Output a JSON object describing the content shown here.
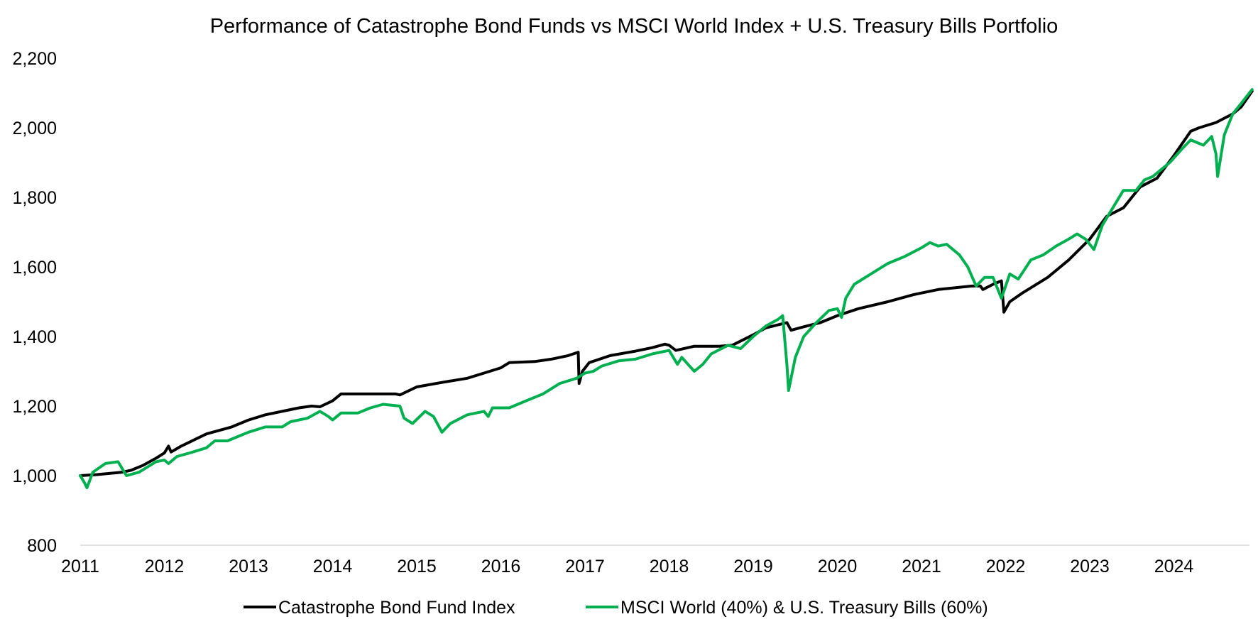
{
  "chart_data": {
    "type": "line",
    "title": "Performance of Catastrophe Bond Funds vs MSCI World Index + U.S. Treasury Bills Portfolio",
    "xlabel": "",
    "ylabel": "",
    "xlim": [
      2011,
      2024.93
    ],
    "ylim": [
      800,
      2200
    ],
    "x_ticks": [
      "2011",
      "2012",
      "2013",
      "2014",
      "2015",
      "2016",
      "2017",
      "2018",
      "2019",
      "2020",
      "2021",
      "2022",
      "2023",
      "2024"
    ],
    "y_ticks": [
      "800",
      "1,000",
      "1,200",
      "1,400",
      "1,600",
      "1,800",
      "2,000",
      "2,200"
    ],
    "grid": false,
    "legend_position": "bottom",
    "series": [
      {
        "name": "Catastrophe Bond Fund Index",
        "color": "#000000",
        "points": [
          [
            2011.0,
            1000
          ],
          [
            2011.2,
            1003
          ],
          [
            2011.5,
            1010
          ],
          [
            2011.6,
            1015
          ],
          [
            2011.75,
            1030
          ],
          [
            2011.9,
            1050
          ],
          [
            2012.0,
            1065
          ],
          [
            2012.05,
            1085
          ],
          [
            2012.08,
            1068
          ],
          [
            2012.2,
            1085
          ],
          [
            2012.5,
            1120
          ],
          [
            2012.8,
            1140
          ],
          [
            2013.0,
            1160
          ],
          [
            2013.2,
            1175
          ],
          [
            2013.6,
            1195
          ],
          [
            2013.75,
            1200
          ],
          [
            2013.85,
            1198
          ],
          [
            2014.0,
            1215
          ],
          [
            2014.1,
            1235
          ],
          [
            2014.3,
            1235
          ],
          [
            2014.75,
            1235
          ],
          [
            2014.8,
            1232
          ],
          [
            2015.0,
            1255
          ],
          [
            2015.3,
            1268
          ],
          [
            2015.6,
            1280
          ],
          [
            2015.8,
            1295
          ],
          [
            2016.0,
            1310
          ],
          [
            2016.1,
            1325
          ],
          [
            2016.4,
            1328
          ],
          [
            2016.6,
            1335
          ],
          [
            2016.8,
            1345
          ],
          [
            2016.92,
            1355
          ],
          [
            2016.93,
            1265
          ],
          [
            2016.97,
            1300
          ],
          [
            2017.05,
            1325
          ],
          [
            2017.3,
            1345
          ],
          [
            2017.6,
            1358
          ],
          [
            2017.8,
            1368
          ],
          [
            2017.95,
            1378
          ],
          [
            2018.0,
            1375
          ],
          [
            2018.08,
            1360
          ],
          [
            2018.3,
            1372
          ],
          [
            2018.6,
            1372
          ],
          [
            2018.75,
            1375
          ],
          [
            2019.0,
            1405
          ],
          [
            2019.15,
            1425
          ],
          [
            2019.4,
            1440
          ],
          [
            2019.45,
            1418
          ],
          [
            2019.6,
            1428
          ],
          [
            2019.8,
            1440
          ],
          [
            2020.0,
            1460
          ],
          [
            2020.25,
            1480
          ],
          [
            2020.6,
            1500
          ],
          [
            2020.9,
            1520
          ],
          [
            2021.0,
            1525
          ],
          [
            2021.2,
            1535
          ],
          [
            2021.6,
            1545
          ],
          [
            2021.7,
            1545
          ],
          [
            2021.73,
            1535
          ],
          [
            2021.85,
            1550
          ],
          [
            2021.95,
            1560
          ],
          [
            2021.98,
            1470
          ],
          [
            2022.05,
            1500
          ],
          [
            2022.2,
            1525
          ],
          [
            2022.5,
            1570
          ],
          [
            2022.75,
            1620
          ],
          [
            2023.0,
            1680
          ],
          [
            2023.2,
            1745
          ],
          [
            2023.4,
            1770
          ],
          [
            2023.6,
            1830
          ],
          [
            2023.8,
            1855
          ],
          [
            2024.0,
            1920
          ],
          [
            2024.2,
            1990
          ],
          [
            2024.3,
            2000
          ],
          [
            2024.5,
            2015
          ],
          [
            2024.7,
            2040
          ],
          [
            2024.8,
            2060
          ],
          [
            2024.93,
            2105
          ]
        ]
      },
      {
        "name": "MSCI World (40%) & U.S. Treasury Bills (60%)",
        "color": "#00b050",
        "points": [
          [
            2011.0,
            1000
          ],
          [
            2011.05,
            980
          ],
          [
            2011.08,
            965
          ],
          [
            2011.15,
            1010
          ],
          [
            2011.3,
            1035
          ],
          [
            2011.45,
            1040
          ],
          [
            2011.55,
            1000
          ],
          [
            2011.7,
            1010
          ],
          [
            2011.9,
            1040
          ],
          [
            2012.0,
            1045
          ],
          [
            2012.05,
            1035
          ],
          [
            2012.15,
            1055
          ],
          [
            2012.3,
            1065
          ],
          [
            2012.5,
            1080
          ],
          [
            2012.6,
            1100
          ],
          [
            2012.75,
            1100
          ],
          [
            2012.9,
            1115
          ],
          [
            2013.0,
            1125
          ],
          [
            2013.2,
            1140
          ],
          [
            2013.4,
            1140
          ],
          [
            2013.5,
            1155
          ],
          [
            2013.7,
            1165
          ],
          [
            2013.85,
            1185
          ],
          [
            2013.95,
            1170
          ],
          [
            2014.0,
            1160
          ],
          [
            2014.1,
            1180
          ],
          [
            2014.3,
            1180
          ],
          [
            2014.45,
            1195
          ],
          [
            2014.6,
            1205
          ],
          [
            2014.8,
            1200
          ],
          [
            2014.85,
            1165
          ],
          [
            2014.95,
            1150
          ],
          [
            2015.1,
            1185
          ],
          [
            2015.2,
            1170
          ],
          [
            2015.3,
            1125
          ],
          [
            2015.4,
            1150
          ],
          [
            2015.6,
            1175
          ],
          [
            2015.8,
            1185
          ],
          [
            2015.85,
            1170
          ],
          [
            2015.9,
            1195
          ],
          [
            2016.1,
            1195
          ],
          [
            2016.3,
            1215
          ],
          [
            2016.5,
            1235
          ],
          [
            2016.7,
            1265
          ],
          [
            2016.9,
            1280
          ],
          [
            2017.0,
            1295
          ],
          [
            2017.1,
            1300
          ],
          [
            2017.2,
            1315
          ],
          [
            2017.4,
            1330
          ],
          [
            2017.6,
            1335
          ],
          [
            2017.8,
            1350
          ],
          [
            2018.0,
            1360
          ],
          [
            2018.1,
            1320
          ],
          [
            2018.15,
            1340
          ],
          [
            2018.3,
            1300
          ],
          [
            2018.4,
            1320
          ],
          [
            2018.5,
            1350
          ],
          [
            2018.7,
            1375
          ],
          [
            2018.85,
            1365
          ],
          [
            2019.0,
            1400
          ],
          [
            2019.15,
            1430
          ],
          [
            2019.3,
            1450
          ],
          [
            2019.35,
            1460
          ],
          [
            2019.4,
            1320
          ],
          [
            2019.42,
            1245
          ],
          [
            2019.5,
            1340
          ],
          [
            2019.6,
            1400
          ],
          [
            2019.75,
            1440
          ],
          [
            2019.9,
            1475
          ],
          [
            2020.0,
            1480
          ],
          [
            2020.05,
            1455
          ],
          [
            2020.1,
            1510
          ],
          [
            2020.2,
            1550
          ],
          [
            2020.4,
            1580
          ],
          [
            2020.6,
            1610
          ],
          [
            2020.8,
            1630
          ],
          [
            2021.0,
            1655
          ],
          [
            2021.1,
            1670
          ],
          [
            2021.2,
            1660
          ],
          [
            2021.3,
            1665
          ],
          [
            2021.45,
            1635
          ],
          [
            2021.55,
            1600
          ],
          [
            2021.65,
            1545
          ],
          [
            2021.75,
            1570
          ],
          [
            2021.85,
            1570
          ],
          [
            2021.95,
            1510
          ],
          [
            2022.05,
            1580
          ],
          [
            2022.15,
            1565
          ],
          [
            2022.3,
            1620
          ],
          [
            2022.45,
            1635
          ],
          [
            2022.6,
            1660
          ],
          [
            2022.75,
            1680
          ],
          [
            2022.85,
            1695
          ],
          [
            2022.95,
            1680
          ],
          [
            2023.05,
            1650
          ],
          [
            2023.15,
            1720
          ],
          [
            2023.3,
            1780
          ],
          [
            2023.4,
            1820
          ],
          [
            2023.55,
            1820
          ],
          [
            2023.65,
            1850
          ],
          [
            2023.75,
            1860
          ],
          [
            2023.85,
            1880
          ],
          [
            2023.95,
            1900
          ],
          [
            2024.1,
            1940
          ],
          [
            2024.2,
            1965
          ],
          [
            2024.35,
            1950
          ],
          [
            2024.45,
            1975
          ],
          [
            2024.5,
            1925
          ],
          [
            2024.52,
            1860
          ],
          [
            2024.6,
            1980
          ],
          [
            2024.7,
            2040
          ],
          [
            2024.8,
            2070
          ],
          [
            2024.93,
            2110
          ]
        ]
      }
    ]
  }
}
